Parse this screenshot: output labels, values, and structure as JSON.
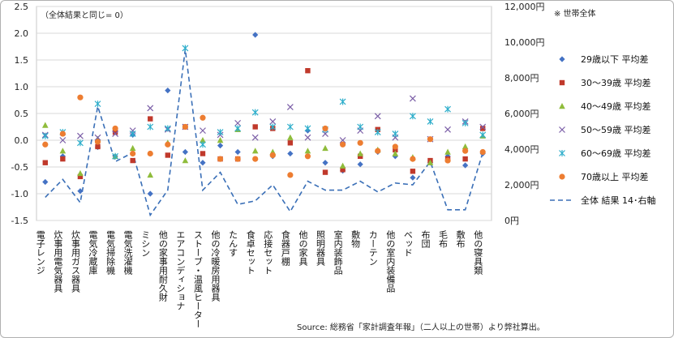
{
  "chart_data": {
    "type": "scatter",
    "annotation": "（全体結果と同じ= 0）",
    "unit_note": "※ 世帯全体",
    "source": "Source: 総務省「家計調査年報」（二人以上の世帯）より弊社算出。",
    "ylim": [
      -1.5,
      2.5
    ],
    "y_ticks": [
      "2.5",
      "2.0",
      "1.5",
      "1.0",
      "0.5",
      "0.0",
      "-0.5",
      "-1.0",
      "-1.5"
    ],
    "y2lim": [
      0,
      12000
    ],
    "y2_ticks": [
      "12,000円",
      "10,000円",
      "8,000円",
      "6,000円",
      "4,000円",
      "2,000円",
      "0円"
    ],
    "categories": [
      "電子レンジ",
      "炊事用電気器具",
      "炊事用ガス器具",
      "電気冷蔵庫",
      "電気掃除機",
      "電気洗濯機",
      "ミシン",
      "他の家事用耐久財",
      "エアコンディショナ",
      "ストーブ・温風ヒーター",
      "他の冷暖房用器具",
      "たんす",
      "食卓セット",
      "応接セット",
      "食器戸棚",
      "他の家具",
      "照明器具",
      "室内装飾品",
      "敷物",
      "カーテン",
      "他の室内装備品",
      "ベッド",
      "布団",
      "毛布",
      "敷布",
      "他の寝具類"
    ],
    "series": [
      {
        "name": "29歳以下 平均差",
        "color": "#4472c4",
        "marker": "diamond",
        "values": [
          -0.78,
          -0.3,
          -0.95,
          -0.13,
          -0.3,
          0.1,
          -1.0,
          0.93,
          -0.22,
          -0.42,
          -0.1,
          -0.22,
          1.97,
          -0.3,
          -0.25,
          0.18,
          -0.42,
          -0.57,
          -0.45,
          -0.22,
          -0.3,
          -0.7,
          -0.42,
          -0.3,
          -0.47,
          -0.25
        ]
      },
      {
        "name": "30～39歳 平均差",
        "color": "#c0392b",
        "marker": "square",
        "values": [
          -0.42,
          -0.35,
          -0.68,
          -0.12,
          0.15,
          -0.38,
          0.4,
          -0.28,
          0.25,
          -0.25,
          -0.35,
          -0.35,
          0.25,
          0.22,
          -0.05,
          1.3,
          -0.6,
          -0.55,
          -0.3,
          0.2,
          -0.18,
          -0.58,
          -0.38,
          -0.35,
          -0.35,
          0.22
        ]
      },
      {
        "name": "40～49歳 平均差",
        "color": "#8fbc3b",
        "marker": "triangle",
        "values": [
          0.28,
          -0.2,
          -0.62,
          0.02,
          -0.3,
          -0.15,
          -0.65,
          -0.05,
          -0.38,
          0.0,
          0.0,
          0.2,
          -0.2,
          -0.22,
          0.05,
          -0.2,
          -0.15,
          -0.48,
          -0.25,
          -0.18,
          -0.25,
          -0.32,
          -0.42,
          -0.22,
          -0.12,
          0.08
        ]
      },
      {
        "name": "50～59歳 平均差",
        "color": "#7b5ea7",
        "marker": "x",
        "values": [
          0.1,
          0.0,
          0.08,
          0.05,
          0.12,
          0.18,
          0.6,
          0.2,
          0.25,
          0.18,
          0.1,
          0.32,
          0.05,
          0.35,
          0.62,
          0.05,
          0.12,
          0.0,
          0.18,
          0.45,
          0.05,
          0.78,
          0.02,
          0.2,
          0.35,
          0.25
        ]
      },
      {
        "name": "60～69歳 平均差",
        "color": "#2eaecb",
        "marker": "star",
        "values": [
          0.08,
          0.15,
          -0.05,
          0.68,
          -0.3,
          0.12,
          0.25,
          0.22,
          1.72,
          -0.08,
          0.15,
          0.22,
          0.52,
          0.25,
          0.25,
          0.22,
          0.2,
          0.72,
          0.25,
          0.15,
          0.12,
          0.45,
          0.35,
          0.58,
          0.32,
          0.1
        ]
      },
      {
        "name": "70歳以上 平均差",
        "color": "#ed7d31",
        "marker": "circle",
        "values": [
          -0.08,
          0.12,
          0.8,
          -0.03,
          0.22,
          -0.25,
          -0.25,
          -0.08,
          0.25,
          0.42,
          -0.35,
          -0.35,
          -0.35,
          -0.28,
          -0.65,
          -0.3,
          0.22,
          -0.08,
          -0.05,
          -0.2,
          -0.12,
          -0.35,
          0.02,
          -0.38,
          -0.2,
          -0.22
        ]
      }
    ],
    "total_series": {
      "name": "全体 結果 14･右軸",
      "color": "#3a6fb7",
      "axis": "right",
      "values": [
        1300,
        2300,
        1000,
        6400,
        3300,
        3800,
        300,
        1700,
        9600,
        1700,
        2700,
        900,
        1100,
        2000,
        500,
        2200,
        1700,
        1700,
        2200,
        1600,
        2100,
        2000,
        3300,
        600,
        600,
        3800
      ]
    }
  }
}
